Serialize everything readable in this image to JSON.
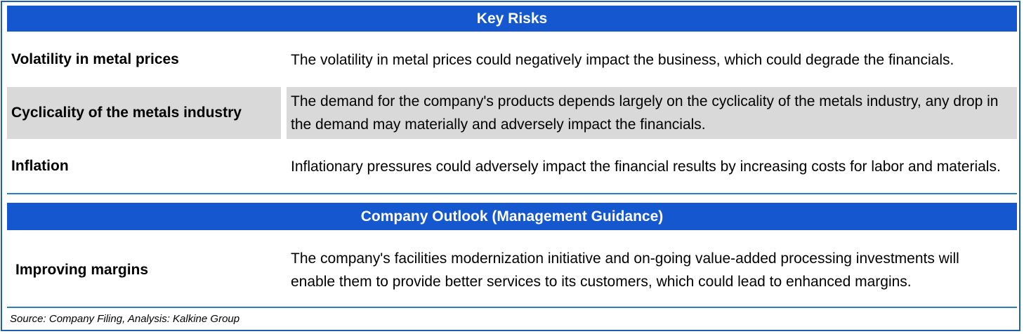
{
  "key_risks": {
    "title": "Key Risks",
    "rows": [
      {
        "label": "Volatility in metal prices",
        "description": "The volatility in metal prices could negatively impact the business, which could degrade the financials."
      },
      {
        "label": "Cyclicality of the metals industry",
        "description": "The demand for the company's products depends largely on the cyclicality of the metals industry, any drop in the demand may materially and adversely impact the financials."
      },
      {
        "label": "Inflation",
        "description": "Inflationary pressures could adversely impact the financial results by increasing costs for labor and materials."
      }
    ]
  },
  "outlook": {
    "title": "Company Outlook (Management Guidance)",
    "rows": [
      {
        "label": "Improving margins",
        "description": "The company's facilities modernization initiative and on-going value-added processing investments will enable them to provide better services to its customers, which could lead to enhanced margins."
      }
    ]
  },
  "source": "Source: Company Filing, Analysis: Kalkine Group",
  "colors": {
    "header_bg": "#1457cf",
    "shaded_row": "#d9d9d9",
    "border": "#1f5fb0"
  }
}
